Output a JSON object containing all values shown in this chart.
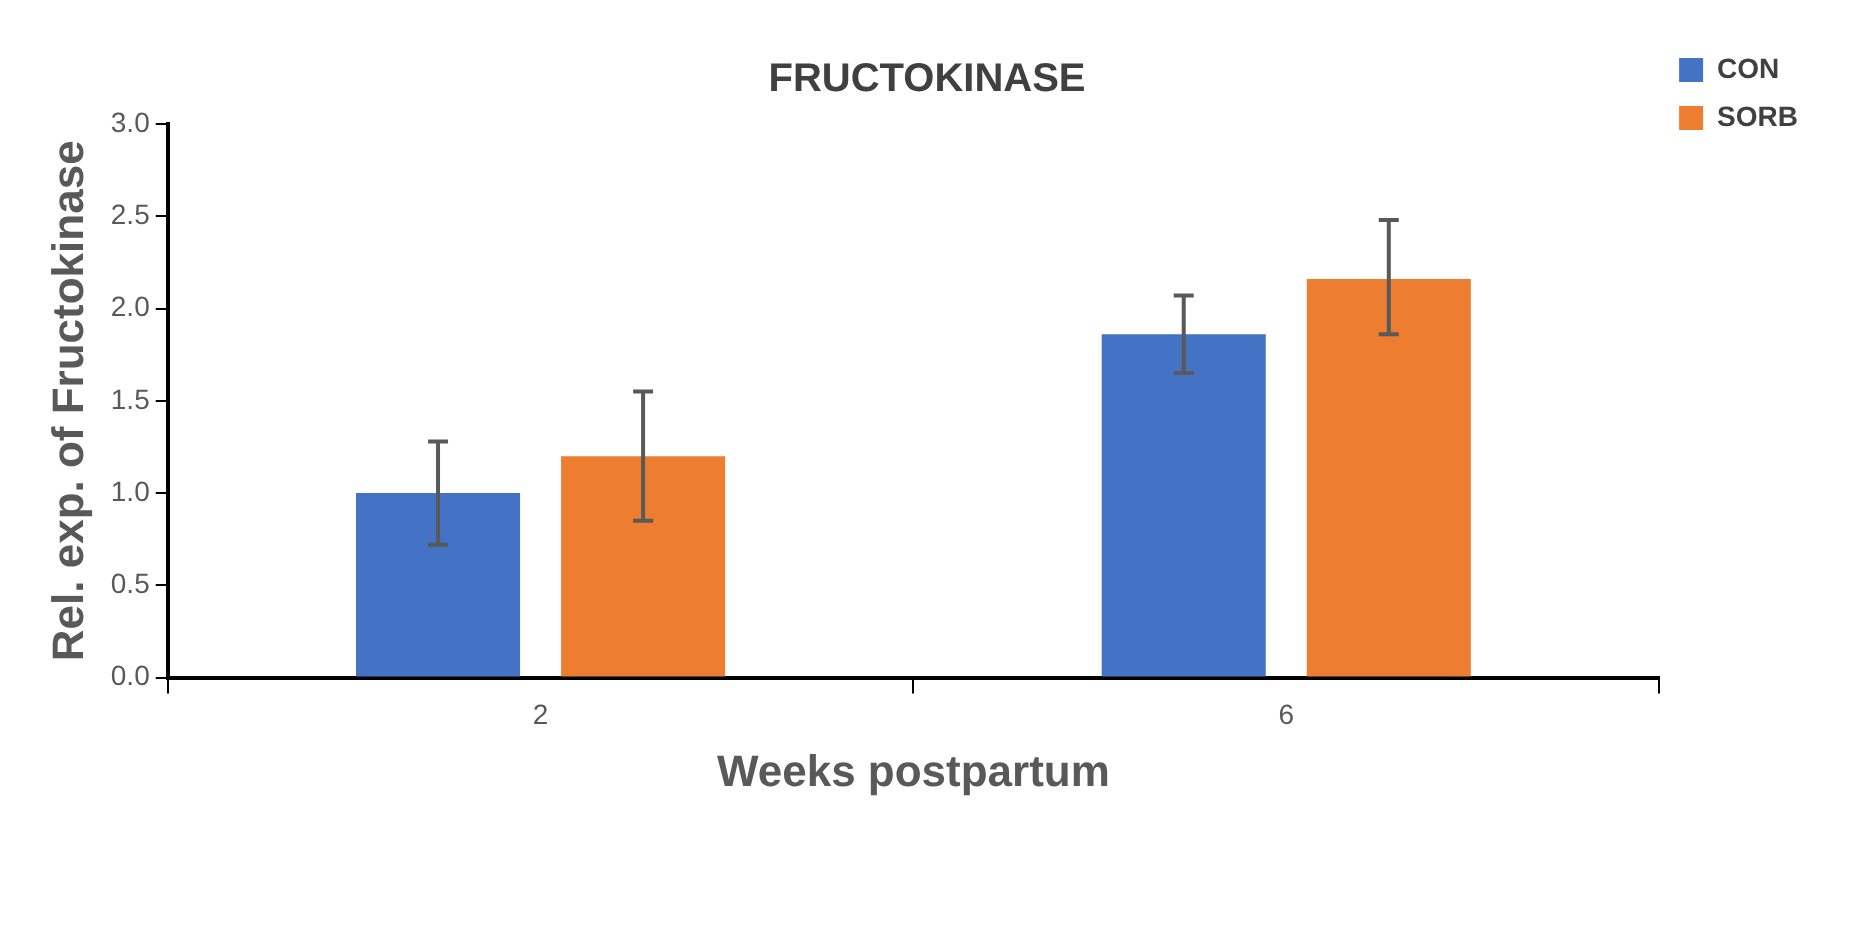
{
  "chart_data": {
    "type": "bar",
    "title": "FRUCTOKINASE",
    "xlabel": "Weeks postpartum",
    "ylabel": "Rel. exp. of Fructokinase",
    "categories": [
      "2",
      "6"
    ],
    "series": [
      {
        "name": "CON",
        "color": "#4472c4",
        "values": [
          1.0,
          1.86
        ],
        "errors": [
          [
            0.72,
            1.28
          ],
          [
            1.65,
            2.07
          ]
        ]
      },
      {
        "name": "SORB",
        "color": "#ed7d31",
        "values": [
          1.2,
          2.16
        ],
        "errors": [
          [
            0.85,
            1.55
          ],
          [
            1.86,
            2.48
          ]
        ]
      }
    ],
    "ylim": [
      0,
      3
    ],
    "yticks": [
      {
        "value": 0,
        "label": "0.0"
      },
      0.5,
      {
        "value": 1,
        "label": "1.0"
      },
      1.5,
      {
        "value": 2,
        "label": "2.0"
      },
      2.5,
      {
        "value": 3,
        "label": "3.0"
      }
    ],
    "grid": false,
    "legend": "top right"
  }
}
